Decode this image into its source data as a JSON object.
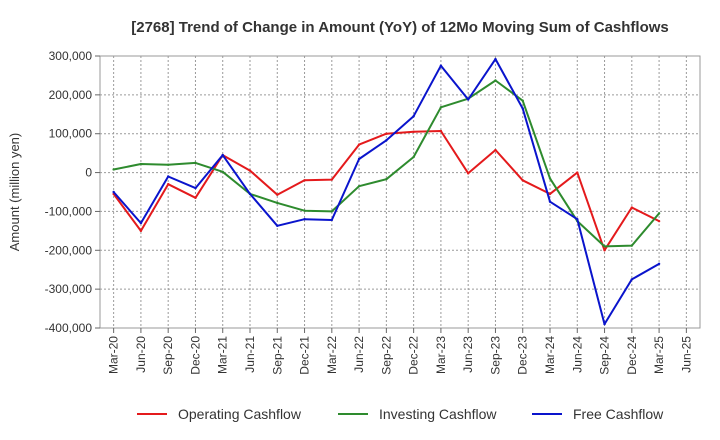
{
  "chart_data": {
    "type": "line",
    "title": "[2768]  Trend of Change in Amount (YoY) of 12Mo Moving Sum of Cashflows",
    "xlabel": "",
    "ylabel": "Amount (million yen)",
    "ylim": [
      -400000,
      300000
    ],
    "yticks": [
      300000,
      200000,
      100000,
      0,
      -100000,
      -200000,
      -300000,
      -400000
    ],
    "ytick_labels": [
      "300,000",
      "200,000",
      "100,000",
      "0",
      "-100,000",
      "-200,000",
      "-300,000",
      "-400,000"
    ],
    "grid": true,
    "legend_position": "bottom",
    "categories": [
      "Mar-20",
      "Jun-20",
      "Sep-20",
      "Dec-20",
      "Mar-21",
      "Jun-21",
      "Sep-21",
      "Dec-21",
      "Mar-22",
      "Jun-22",
      "Sep-22",
      "Dec-22",
      "Mar-23",
      "Jun-23",
      "Sep-23",
      "Dec-23",
      "Mar-24",
      "Jun-24",
      "Sep-24",
      "Dec-24",
      "Mar-25",
      "Jun-25"
    ],
    "series": [
      {
        "name": "Operating Cashflow",
        "color": "#e41a1c",
        "values": [
          -55000,
          -150000,
          -30000,
          -65000,
          45000,
          5000,
          -57000,
          -20000,
          -18000,
          72000,
          100000,
          105000,
          107000,
          -2000,
          58000,
          -20000,
          -55000,
          0,
          -200000,
          -90000,
          -125000,
          null
        ]
      },
      {
        "name": "Investing Cashflow",
        "color": "#2e8b2e",
        "values": [
          8000,
          22000,
          20000,
          25000,
          2000,
          -55000,
          -78000,
          -98000,
          -100000,
          -35000,
          -17000,
          40000,
          168000,
          190000,
          237000,
          185000,
          -15000,
          -125000,
          -190000,
          -188000,
          -105000,
          null
        ]
      },
      {
        "name": "Free Cashflow",
        "color": "#0a14cc",
        "values": [
          -50000,
          -130000,
          -10000,
          -40000,
          45000,
          -55000,
          -137000,
          -120000,
          -122000,
          35000,
          83000,
          145000,
          275000,
          188000,
          292000,
          165000,
          -75000,
          -120000,
          -390000,
          -275000,
          -235000,
          null
        ]
      }
    ]
  }
}
